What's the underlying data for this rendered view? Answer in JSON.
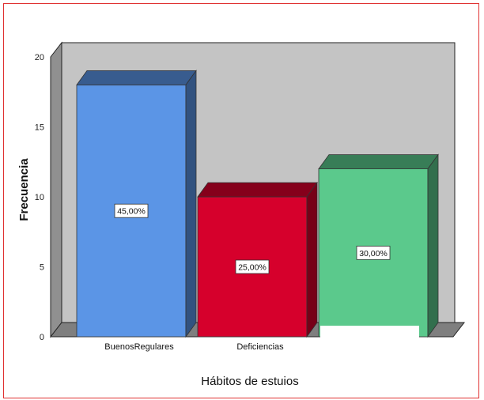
{
  "chart_data": {
    "type": "bar",
    "title": "",
    "xlabel": "Hábitos de estuios",
    "ylabel": "Frecuencia",
    "ylim": [
      0,
      20
    ],
    "yticks": [
      0,
      5,
      10,
      15,
      20
    ],
    "categories": [
      "BuenosRegulares",
      "Deficiencias",
      ""
    ],
    "values": [
      18,
      10,
      12
    ],
    "data_labels": [
      "45,00%",
      "25,00%",
      "30,00%"
    ],
    "colors": [
      "#5b95e6",
      "#d6002c",
      "#5bc98c"
    ],
    "grid": false,
    "legend": "none",
    "style": "3d",
    "background": "#c4c4c4"
  }
}
